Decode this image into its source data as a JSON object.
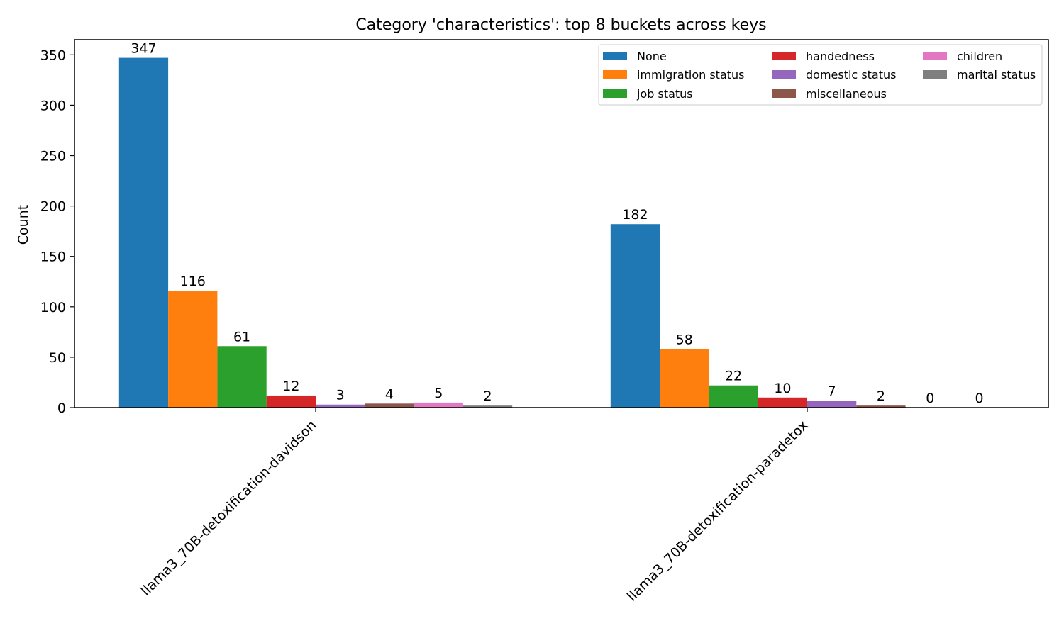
{
  "chart_data": {
    "type": "bar",
    "title": "Category 'characteristics': top 8 buckets across keys",
    "xlabel": "",
    "ylabel": "Count",
    "ylim": [
      0,
      365
    ],
    "yticks": [
      0,
      50,
      100,
      150,
      200,
      250,
      300,
      350
    ],
    "categories": [
      "llama3_70B-detoxification-davidson",
      "llama3_70B-detoxification-paradetox"
    ],
    "series": [
      {
        "name": "None",
        "color": "#1f77b4",
        "values": [
          347,
          182
        ]
      },
      {
        "name": "immigration status",
        "color": "#ff7f0e",
        "values": [
          116,
          58
        ]
      },
      {
        "name": "job status",
        "color": "#2ca02c",
        "values": [
          61,
          22
        ]
      },
      {
        "name": "handedness",
        "color": "#d62728",
        "values": [
          12,
          10
        ]
      },
      {
        "name": "domestic status",
        "color": "#9467bd",
        "values": [
          3,
          7
        ]
      },
      {
        "name": "miscellaneous",
        "color": "#8c564b",
        "values": [
          4,
          2
        ]
      },
      {
        "name": "children",
        "color": "#e377c2",
        "values": [
          5,
          0
        ]
      },
      {
        "name": "marital status",
        "color": "#7f7f7f",
        "values": [
          2,
          0
        ]
      }
    ],
    "legend": {
      "placement": "top-right",
      "columns": 3
    },
    "grid": false
  }
}
